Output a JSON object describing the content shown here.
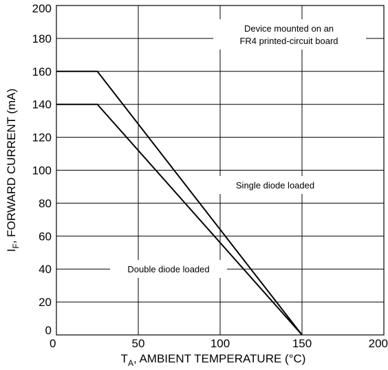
{
  "chart_data": {
    "type": "line",
    "title": "",
    "xlabel_main": "T",
    "xlabel_sub": "A",
    "xlabel_rest": ", AMBIENT TEMPERATURE (°C)",
    "ylabel_main": "I",
    "ylabel_sub": "F",
    "ylabel_rest": ", FORWARD CURRENT (mA)",
    "xlim": [
      0,
      200
    ],
    "ylim": [
      0,
      200
    ],
    "x_ticks": [
      0,
      50,
      100,
      150,
      200
    ],
    "y_ticks": [
      0,
      20,
      40,
      60,
      80,
      100,
      120,
      140,
      160,
      180,
      200
    ],
    "grid": true,
    "series": [
      {
        "name": "Single diode loaded",
        "x": [
          0,
          25,
          150
        ],
        "y": [
          160,
          160,
          0
        ]
      },
      {
        "name": "Double diode loaded",
        "x": [
          0,
          25,
          150
        ],
        "y": [
          140,
          140,
          0
        ]
      }
    ],
    "annotations": [
      "Device mounted on an",
      "FR4 printed-circuit board"
    ]
  }
}
